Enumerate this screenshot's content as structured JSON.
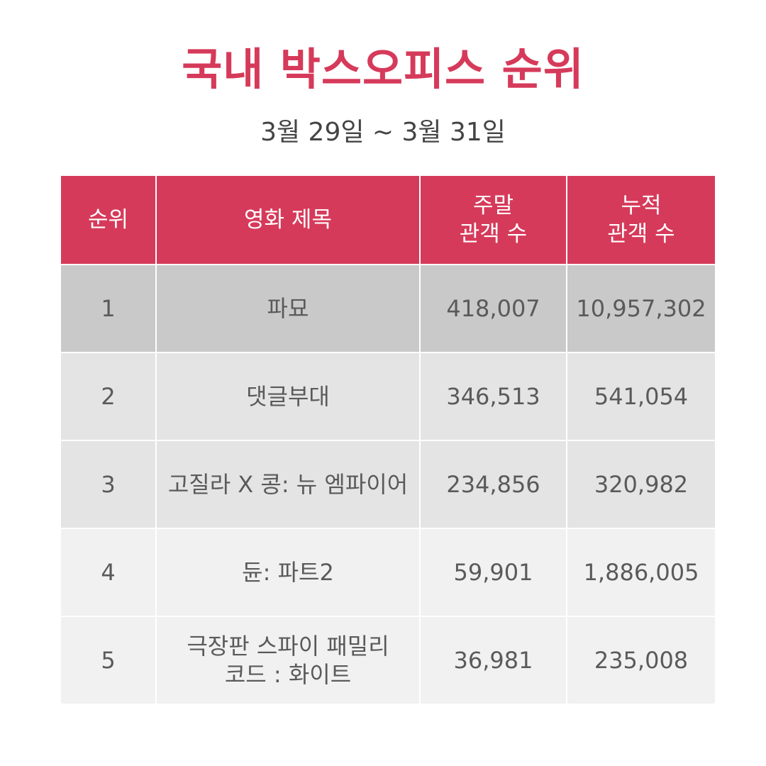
{
  "title": "국내 박스오피스 순위",
  "subtitle": "3월 29일 ~ 3월 31일",
  "table": {
    "headers": {
      "rank": "순위",
      "movie_title": "영화 제목",
      "weekend_line1": "주말",
      "weekend_line2": "관객 수",
      "total_line1": "누적",
      "total_line2": "관객 수"
    },
    "rows": [
      {
        "rank": "1",
        "title_line1": "파묘",
        "title_line2": "",
        "weekend": "418,007",
        "total": "10,957,302"
      },
      {
        "rank": "2",
        "title_line1": "댓글부대",
        "title_line2": "",
        "weekend": "346,513",
        "total": "541,054"
      },
      {
        "rank": "3",
        "title_line1": "고질라 X 콩: 뉴 엠파이어",
        "title_line2": "",
        "weekend": "234,856",
        "total": "320,982"
      },
      {
        "rank": "4",
        "title_line1": "듄: 파트2",
        "title_line2": "",
        "weekend": "59,901",
        "total": "1,886,005"
      },
      {
        "rank": "5",
        "title_line1": "극장판 스파이 패밀리",
        "title_line2": "코드 : 화이트",
        "weekend": "36,981",
        "total": "235,008"
      }
    ]
  },
  "colors": {
    "accent": "#d63a5a",
    "row_dark": "#c9c9c9",
    "row_mid": "#e4e4e4",
    "row_light": "#f1f1f1",
    "text": "#5a5a5a"
  }
}
